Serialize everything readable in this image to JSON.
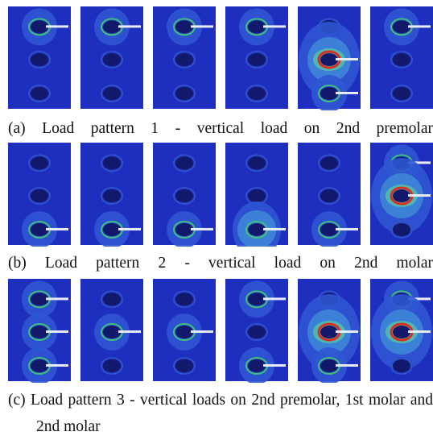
{
  "figure": {
    "rows": [
      {
        "caption": "(a) Load pattern 1 - vertical load on 2nd premolar"
      },
      {
        "caption": "(b) Load pattern 2 - vertical load on 2nd molar"
      },
      {
        "caption": "(c) Load pattern 3 - vertical loads on 2nd premolar, 1st molar and 2nd molar"
      }
    ]
  }
}
